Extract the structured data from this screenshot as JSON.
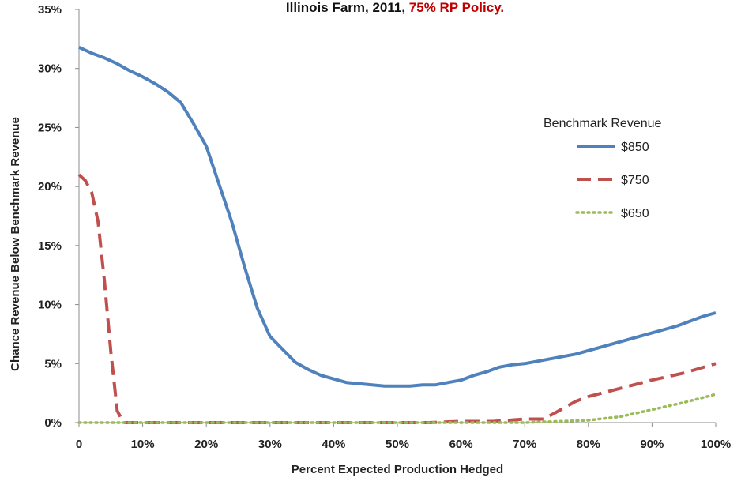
{
  "chart_data": {
    "type": "line",
    "title": {
      "prefix": "Illinois Farm, 2011,",
      "emphasis": "75% RP Policy."
    },
    "xlabel": "Percent Expected Production Hedged",
    "ylabel": "Chance Revenue Below Benchmark Revenue",
    "x_ticks": [
      "0",
      "10%",
      "20%",
      "30%",
      "40%",
      "50%",
      "60%",
      "70%",
      "80%",
      "90%",
      "100%"
    ],
    "y_ticks": [
      "0%",
      "5%",
      "10%",
      "15%",
      "20%",
      "25%",
      "30%",
      "35%"
    ],
    "xlim": [
      0,
      100
    ],
    "ylim": [
      0,
      35
    ],
    "grid": false,
    "legend": {
      "title": "Benchmark Revenue",
      "position": "right"
    },
    "series": [
      {
        "name": "$850",
        "color": "#4f81bd",
        "style": "solid",
        "x": [
          0,
          2,
          4,
          6,
          8,
          10,
          12,
          14,
          16,
          18,
          20,
          22,
          24,
          26,
          28,
          30,
          32,
          34,
          36,
          38,
          40,
          42,
          44,
          46,
          48,
          50,
          52,
          54,
          56,
          58,
          60,
          62,
          64,
          66,
          68,
          70,
          72,
          74,
          76,
          78,
          80,
          82,
          84,
          86,
          88,
          90,
          92,
          94,
          96,
          98,
          100
        ],
        "y": [
          31.8,
          31.3,
          30.9,
          30.4,
          29.8,
          29.3,
          28.7,
          28.0,
          27.1,
          25.3,
          23.4,
          20.2,
          17.0,
          13.2,
          9.7,
          7.3,
          6.2,
          5.1,
          4.5,
          4.0,
          3.7,
          3.4,
          3.3,
          3.2,
          3.1,
          3.1,
          3.1,
          3.2,
          3.2,
          3.4,
          3.6,
          4.0,
          4.3,
          4.7,
          4.9,
          5.0,
          5.2,
          5.4,
          5.6,
          5.8,
          6.1,
          6.4,
          6.7,
          7.0,
          7.3,
          7.6,
          7.9,
          8.2,
          8.6,
          9.0,
          9.3
        ]
      },
      {
        "name": "$750",
        "color": "#c0504d",
        "style": "dashed",
        "x": [
          0,
          1,
          2,
          3,
          4,
          5,
          6,
          7,
          10,
          20,
          30,
          40,
          50,
          55,
          60,
          65,
          70,
          73,
          75,
          78,
          80,
          85,
          90,
          95,
          100
        ],
        "y": [
          21.0,
          20.5,
          19.5,
          17.0,
          12.0,
          6.0,
          1.0,
          0.0,
          0.0,
          0.0,
          0.0,
          0.0,
          0.0,
          0.0,
          0.1,
          0.1,
          0.3,
          0.3,
          0.9,
          1.8,
          2.2,
          2.9,
          3.6,
          4.2,
          5.0
        ]
      },
      {
        "name": "$650",
        "color": "#9bbb59",
        "style": "dotted",
        "x": [
          0,
          10,
          20,
          30,
          40,
          50,
          60,
          70,
          75,
          80,
          85,
          90,
          95,
          100
        ],
        "y": [
          0.0,
          0.0,
          0.0,
          0.0,
          0.0,
          0.0,
          0.0,
          0.0,
          0.1,
          0.2,
          0.5,
          1.1,
          1.7,
          2.4
        ]
      }
    ]
  }
}
